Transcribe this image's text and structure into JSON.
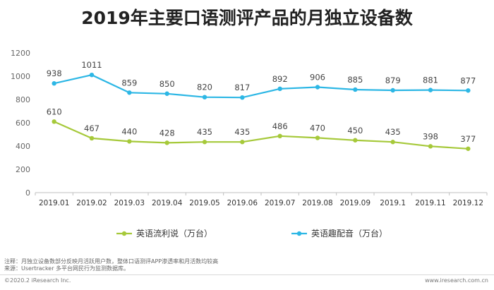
{
  "title": "2019年主要口语测评产品的月独立设备数",
  "chart_data": {
    "type": "line",
    "title": "2019年主要口语测评产品的月独立设备数",
    "xlabel": "",
    "ylabel": "",
    "categories": [
      "2019.01",
      "2019.02",
      "2019.03",
      "2019.04",
      "2019.05",
      "2019.06",
      "2019.07",
      "2019.08",
      "2019.09",
      "2019.1",
      "2019.11",
      "2019.12"
    ],
    "yticks": [
      "0",
      "200",
      "400",
      "600",
      "800",
      "1000",
      "1200"
    ],
    "ylim": [
      0,
      1200
    ],
    "grid": false,
    "legend_position": "bottom",
    "series": [
      {
        "name": "英语流利说（万台）",
        "color": "#a6c93a",
        "values": [
          610,
          467,
          440,
          428,
          435,
          435,
          486,
          470,
          450,
          435,
          398,
          377
        ],
        "labels": [
          "610",
          "467",
          "440",
          "428",
          "435",
          "435",
          "486",
          "470",
          "450",
          "435",
          "398",
          "377"
        ]
      },
      {
        "name": "英语趣配音（万台）",
        "color": "#2db7e5",
        "values": [
          938,
          1011,
          859,
          850,
          820,
          817,
          892,
          906,
          885,
          879,
          881,
          877
        ],
        "labels": [
          "938",
          "1011",
          "859",
          "850",
          "820",
          "817",
          "892",
          "906",
          "885",
          "879",
          "881",
          "877"
        ]
      }
    ]
  },
  "notes": {
    "line1": "注释：月独立设备数部分反映月活跃用户数，整体口语测评APP渗透率和月活数均较高",
    "line2": "来源：Usertracker 多平台网民行为监测数据库。"
  },
  "footer": {
    "left": "©2020.2 iResearch Inc.",
    "right": "www.iresearch.com.cn"
  }
}
